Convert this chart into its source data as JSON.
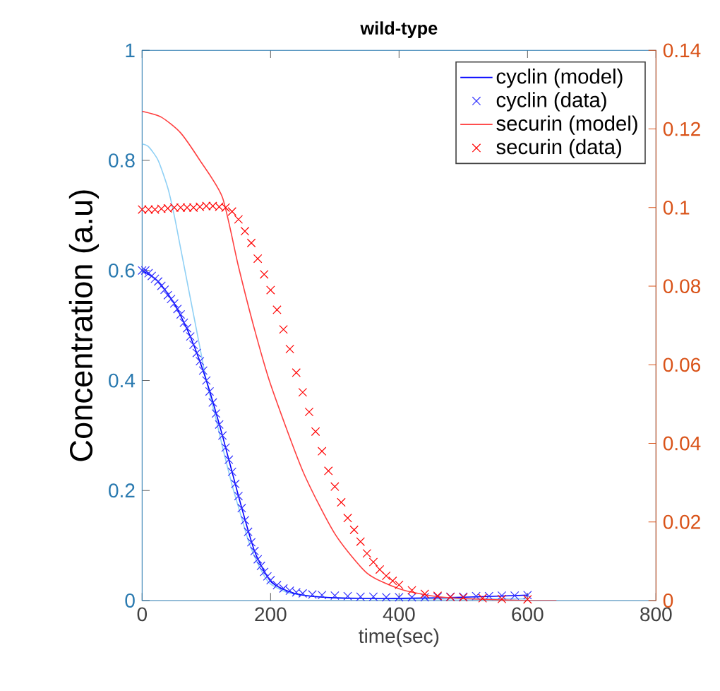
{
  "chart_data": {
    "type": "line",
    "title": "wild-type",
    "xlabel": "time(sec)",
    "ylabel": "Concentration (a.u)",
    "xlim": [
      0,
      800
    ],
    "xticks": [
      0,
      200,
      400,
      600,
      800
    ],
    "ylim": [
      0,
      1
    ],
    "yticks": [
      0,
      0.2,
      0.4,
      0.6,
      0.8,
      1
    ],
    "y2lim": [
      0,
      0.14
    ],
    "y2ticks": [
      0,
      0.02,
      0.04,
      0.06,
      0.08,
      0.1,
      0.12,
      0.14
    ],
    "legend": "top right",
    "series": [
      {
        "color": "#8fd0f5",
        "x": [
          0,
          10,
          25,
          40,
          50,
          60,
          75,
          90,
          100,
          115,
          125,
          140,
          150,
          165,
          175,
          190,
          200,
          225,
          250,
          300,
          400,
          500,
          600
        ],
        "values": [
          0.83,
          0.825,
          0.8,
          0.75,
          0.7,
          0.64,
          0.55,
          0.46,
          0.4,
          0.33,
          0.28,
          0.21,
          0.17,
          0.11,
          0.08,
          0.045,
          0.03,
          0.015,
          0.01,
          0.005,
          0.003,
          0.003,
          0.003
        ]
      },
      {
        "name": "cyclin (model)",
        "color": "#0000ff",
        "x": [
          0,
          25,
          50,
          75,
          100,
          125,
          150,
          175,
          200,
          225,
          250,
          300,
          400,
          500,
          600
        ],
        "values": [
          0.6,
          0.58,
          0.54,
          0.48,
          0.4,
          0.3,
          0.19,
          0.09,
          0.035,
          0.018,
          0.01,
          0.005,
          0.004,
          0.006,
          0.01
        ]
      },
      {
        "name": "cyclin (data)",
        "color": "#3030ff",
        "type": "scatter",
        "marker": "cross",
        "x": [
          0,
          5,
          10,
          15,
          20,
          25,
          30,
          35,
          40,
          45,
          50,
          55,
          60,
          65,
          70,
          75,
          80,
          85,
          90,
          95,
          100,
          105,
          110,
          115,
          120,
          125,
          130,
          135,
          140,
          145,
          150,
          155,
          160,
          165,
          170,
          175,
          180,
          185,
          190,
          195,
          200,
          210,
          220,
          230,
          240,
          250,
          265,
          280,
          300,
          320,
          340,
          360,
          380,
          400,
          420,
          440,
          460,
          480,
          500,
          520,
          540,
          560,
          580,
          600
        ],
        "values": [
          0.6,
          0.6,
          0.595,
          0.59,
          0.585,
          0.58,
          0.572,
          0.565,
          0.555,
          0.548,
          0.54,
          0.53,
          0.52,
          0.505,
          0.495,
          0.48,
          0.465,
          0.45,
          0.435,
          0.418,
          0.4,
          0.38,
          0.36,
          0.34,
          0.32,
          0.3,
          0.278,
          0.256,
          0.234,
          0.212,
          0.19,
          0.168,
          0.146,
          0.125,
          0.106,
          0.09,
          0.075,
          0.063,
          0.052,
          0.044,
          0.037,
          0.028,
          0.022,
          0.018,
          0.015,
          0.013,
          0.011,
          0.01,
          0.009,
          0.008,
          0.007,
          0.007,
          0.006,
          0.006,
          0.006,
          0.006,
          0.007,
          0.007,
          0.007,
          0.008,
          0.008,
          0.009,
          0.009,
          0.01
        ]
      },
      {
        "name": "securin (model)",
        "color": "#ff4040",
        "axis": "y2",
        "x": [
          0,
          30,
          60,
          90,
          125,
          150,
          175,
          200,
          250,
          300,
          350,
          400,
          450,
          500,
          600,
          645
        ],
        "values": [
          0.1245,
          0.123,
          0.119,
          0.112,
          0.1026,
          0.085,
          0.069,
          0.055,
          0.033,
          0.017,
          0.007,
          0.003,
          0.0012,
          0.0005,
          0,
          0
        ]
      },
      {
        "name": "securin (data)",
        "color": "#ff0000",
        "type": "scatter",
        "marker": "cross",
        "axis": "y2",
        "x": [
          0,
          10,
          20,
          30,
          40,
          50,
          60,
          70,
          80,
          90,
          100,
          110,
          120,
          130,
          140,
          150,
          160,
          170,
          180,
          190,
          200,
          210,
          220,
          230,
          240,
          250,
          260,
          270,
          280,
          290,
          300,
          310,
          320,
          330,
          340,
          350,
          360,
          370,
          380,
          390,
          400,
          420,
          440,
          460,
          480,
          500,
          530,
          560,
          600
        ],
        "values": [
          0.0995,
          0.0995,
          0.0995,
          0.0997,
          0.0998,
          0.1,
          0.1,
          0.1,
          0.1,
          0.1002,
          0.1004,
          0.1004,
          0.1002,
          0.1,
          0.099,
          0.097,
          0.094,
          0.091,
          0.087,
          0.083,
          0.079,
          0.074,
          0.069,
          0.064,
          0.058,
          0.053,
          0.048,
          0.043,
          0.038,
          0.033,
          0.029,
          0.025,
          0.021,
          0.018,
          0.015,
          0.012,
          0.0098,
          0.0079,
          0.0063,
          0.005,
          0.004,
          0.0026,
          0.0017,
          0.0012,
          0.0009,
          0.0008,
          0.0006,
          0.0004,
          0.0003
        ]
      }
    ]
  }
}
